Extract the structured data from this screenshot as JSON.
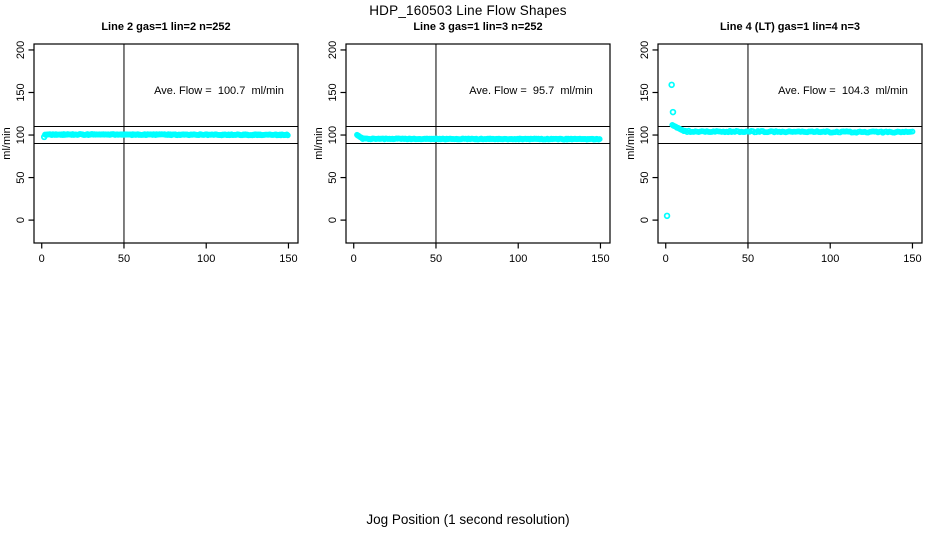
{
  "title": "HDP_160503  Line Flow Shapes",
  "xlabel": "Jog Position (1 second resolution)",
  "colors": {
    "points": "#00FFFF",
    "axis": "#000000",
    "background": "#FFFFFF"
  },
  "chart_data": [
    {
      "type": "scatter",
      "title": "Line 2 gas=1 lin=2 n=252",
      "ylabel": "ml/min",
      "annotation": "Ave. Flow =  100.7  ml/min",
      "ave_flow": 100.7,
      "n": 252,
      "x_ticks": [
        0,
        50,
        100,
        150
      ],
      "y_ticks": [
        0,
        50,
        100,
        150,
        200
      ],
      "xlim": [
        -4.7,
        155.8
      ],
      "ylim": [
        -26.9,
        207.0
      ],
      "ref_lines_y": [
        90,
        110
      ],
      "jog_line_x": 50,
      "band": [
        {
          "x1": 2,
          "x2": 150,
          "y1": 100.6,
          "y2": 100.2,
          "step": 0.6,
          "jitter": 1.2
        }
      ],
      "extra_points": [
        [
          1.5,
          97.8
        ]
      ]
    },
    {
      "type": "scatter",
      "title": "Line 3 gas=1 lin=3 n=252",
      "ylabel": "ml/min",
      "annotation": "Ave. Flow =  95.7  ml/min",
      "ave_flow": 95.7,
      "n": 252,
      "x_ticks": [
        0,
        50,
        100,
        150
      ],
      "y_ticks": [
        0,
        50,
        100,
        150,
        200
      ],
      "xlim": [
        -4.7,
        155.8
      ],
      "ylim": [
        -26.9,
        207.0
      ],
      "ref_lines_y": [
        90,
        110
      ],
      "jog_line_x": 50,
      "band": [
        {
          "x1": 2,
          "x2": 5.5,
          "y1": 100.2,
          "y2": 95.8,
          "step": 0.45,
          "jitter": 0.6
        },
        {
          "x1": 5.5,
          "x2": 150,
          "y1": 95.5,
          "y2": 95.2,
          "step": 0.6,
          "jitter": 1.0
        }
      ],
      "extra_points": []
    },
    {
      "type": "scatter",
      "title": "Line 4 (LT) gas=1 lin=4 n=3",
      "ylabel": "ml/min",
      "annotation": "Ave. Flow =  104.3  ml/min",
      "ave_flow": 104.3,
      "n": 3,
      "x_ticks": [
        0,
        50,
        100,
        150
      ],
      "y_ticks": [
        0,
        50,
        100,
        150,
        200
      ],
      "xlim": [
        -4.7,
        155.8
      ],
      "ylim": [
        -26.9,
        207.0
      ],
      "ref_lines_y": [
        90,
        110
      ],
      "jog_line_x": 50,
      "band": [
        {
          "x1": 4,
          "x2": 11,
          "y1": 111.5,
          "y2": 104.8,
          "step": 0.7,
          "jitter": 0.8
        },
        {
          "x1": 11,
          "x2": 150,
          "y1": 104.3,
          "y2": 103.3,
          "step": 1.0,
          "jitter": 1.6
        }
      ],
      "extra_points": [
        [
          3.6,
          159
        ],
        [
          4.4,
          127
        ],
        [
          0.8,
          5
        ]
      ]
    }
  ]
}
